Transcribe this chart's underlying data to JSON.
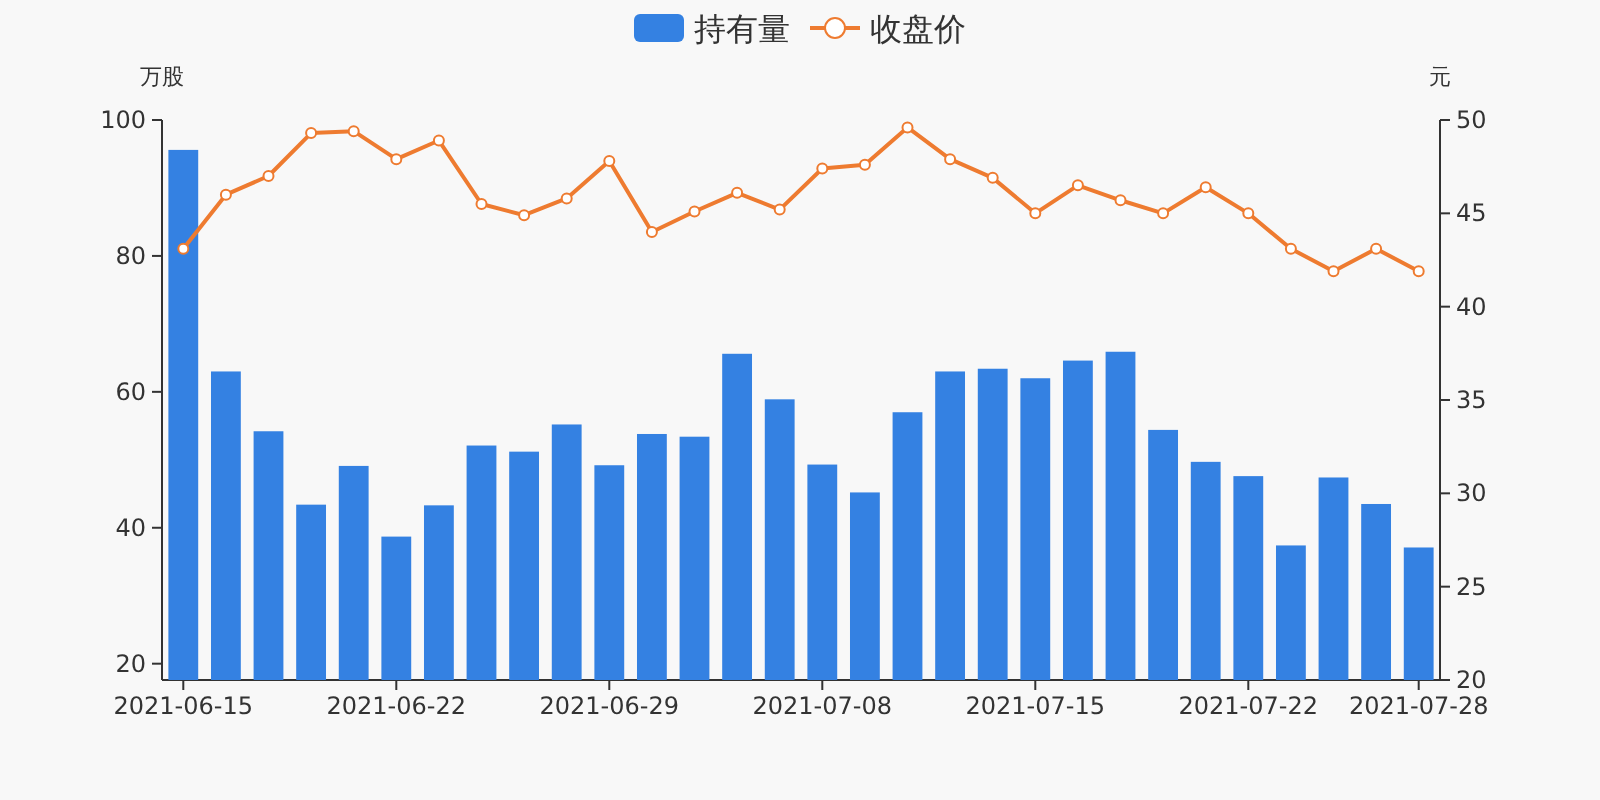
{
  "chart_data": {
    "type": "bar",
    "ylabel": "万股",
    "y2label": "元",
    "categories": [
      "2021-06-15",
      null,
      null,
      null,
      null,
      "2021-06-22",
      null,
      null,
      null,
      null,
      "2021-06-29",
      null,
      null,
      null,
      null,
      "2021-07-08",
      null,
      null,
      null,
      null,
      "2021-07-15",
      null,
      null,
      null,
      null,
      "2021-07-22",
      null,
      null,
      null,
      "2021-07-28"
    ],
    "series": [
      {
        "name": "持有量",
        "color": "#3481e2",
        "values": [
          95.6,
          63.0,
          54.2,
          43.4,
          49.1,
          38.7,
          43.3,
          52.1,
          51.2,
          55.2,
          49.2,
          53.8,
          53.4,
          65.6,
          58.9,
          49.3,
          45.2,
          57.0,
          63.0,
          63.4,
          62.0,
          64.6,
          65.9,
          54.4,
          49.7,
          47.6,
          37.4,
          47.4,
          43.5,
          37.1
        ]
      },
      {
        "name": "收盘价",
        "type": "line",
        "axis": "y2",
        "color": "#ee7b30",
        "marker": "circle",
        "values": [
          43.1,
          46.0,
          47.0,
          49.3,
          49.4,
          47.9,
          48.9,
          45.5,
          44.9,
          45.8,
          47.8,
          44.0,
          45.1,
          46.1,
          45.2,
          47.4,
          47.6,
          49.6,
          47.9,
          46.9,
          45.0,
          46.5,
          45.7,
          45.0,
          46.4,
          45.0,
          43.1,
          41.9,
          43.1,
          41.9
        ]
      }
    ],
    "ylim": [
      17.6,
      100
    ],
    "yticks": [
      20,
      40,
      60,
      80,
      100
    ],
    "y2lim": [
      20,
      50
    ],
    "y2ticks": [
      20,
      25,
      30,
      35,
      40,
      45,
      50
    ],
    "legend": "top"
  }
}
